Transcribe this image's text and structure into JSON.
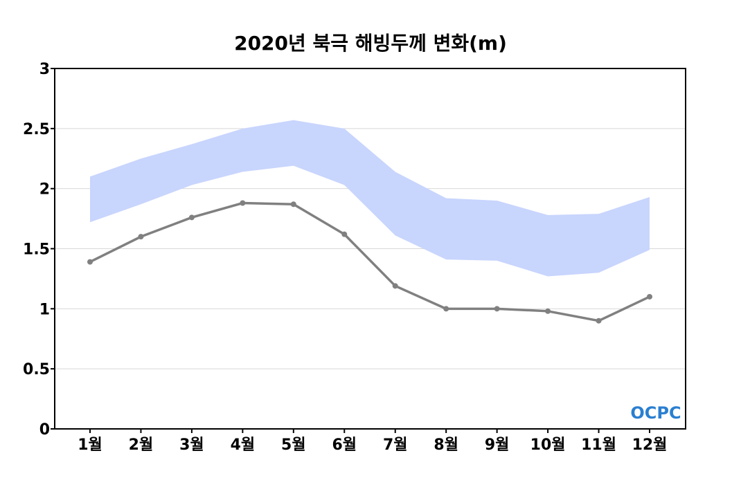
{
  "chart_data": {
    "type": "line",
    "title": "2020년 북극 해빙두께 변화(m)",
    "categories": [
      "1월",
      "2월",
      "3월",
      "4월",
      "5월",
      "6월",
      "7월",
      "8월",
      "9월",
      "10월",
      "11월",
      "12월"
    ],
    "ylim": [
      0,
      3
    ],
    "yticks": [
      "0",
      "0.5",
      "1",
      "1.5",
      "2",
      "2.5",
      "3"
    ],
    "grid": true,
    "series": [
      {
        "type": "line",
        "color": "#808080",
        "values": [
          1.39,
          1.6,
          1.76,
          1.88,
          1.87,
          1.62,
          1.19,
          1.0,
          1.0,
          0.98,
          0.9,
          1.1
        ]
      },
      {
        "type": "band",
        "color": "#c8d5fd",
        "upper": [
          2.1,
          2.25,
          2.37,
          2.5,
          2.57,
          2.5,
          2.14,
          1.92,
          1.9,
          1.78,
          1.79,
          1.93
        ],
        "lower": [
          1.72,
          1.87,
          2.03,
          2.14,
          2.19,
          2.03,
          1.61,
          1.41,
          1.4,
          1.27,
          1.3,
          1.49
        ]
      }
    ],
    "logo": "OCPC"
  }
}
